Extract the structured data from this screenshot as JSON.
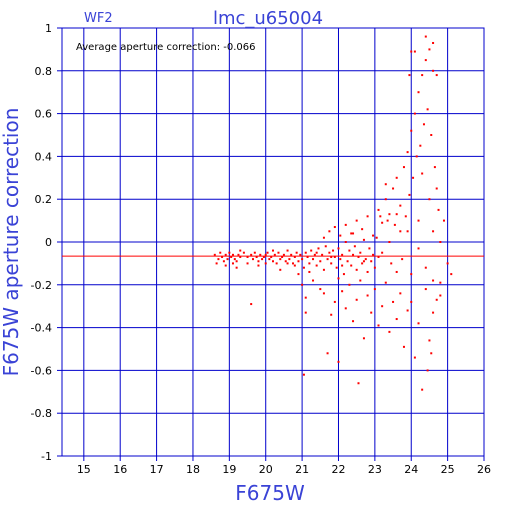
{
  "chart_data": {
    "type": "scatter",
    "title": "lmc_u65004",
    "panel_label": "WF2",
    "annotation": "Average aperture correction: -0.066",
    "xlabel": "F675W",
    "ylabel": "F675W aperture correction",
    "xlim": [
      14.4,
      26
    ],
    "ylim": [
      -1,
      1
    ],
    "xticks": [
      15,
      16,
      17,
      18,
      19,
      20,
      21,
      22,
      23,
      24,
      25,
      26
    ],
    "yticks": [
      -1,
      -0.8,
      -0.6,
      -0.4,
      -0.2,
      0,
      0.2,
      0.4,
      0.6,
      0.8,
      1
    ],
    "ytick_labels": [
      "-1",
      "-0.8",
      "-0.6",
      "-0.4",
      "-0.2",
      "0",
      "0.2",
      "0.4",
      "0.6",
      "0.8",
      "1"
    ],
    "grid": true,
    "reference_line": -0.066,
    "colors": {
      "axes": "#0000cc",
      "points": "#ff0000",
      "reference_line": "#ff0000",
      "text_blue": "#3a43d6"
    },
    "series": [
      {
        "points": [
          [
            18.6,
            -0.06
          ],
          [
            18.7,
            -0.08
          ],
          [
            18.75,
            -0.05
          ],
          [
            18.8,
            -0.07
          ],
          [
            18.85,
            -0.09
          ],
          [
            18.9,
            -0.06
          ],
          [
            18.95,
            -0.08
          ],
          [
            19.0,
            -0.05
          ],
          [
            19.05,
            -0.07
          ],
          [
            19.1,
            -0.06
          ],
          [
            19.15,
            -0.08
          ],
          [
            19.2,
            -0.09
          ],
          [
            19.25,
            -0.06
          ],
          [
            19.3,
            -0.07
          ],
          [
            18.65,
            -0.1
          ],
          [
            18.9,
            -0.11
          ],
          [
            19.1,
            -0.1
          ],
          [
            19.4,
            -0.05
          ],
          [
            19.5,
            -0.07
          ],
          [
            19.6,
            -0.06
          ],
          [
            19.65,
            -0.08
          ],
          [
            19.7,
            -0.05
          ],
          [
            19.75,
            -0.07
          ],
          [
            19.8,
            -0.09
          ],
          [
            19.85,
            -0.06
          ],
          [
            19.9,
            -0.08
          ],
          [
            19.95,
            -0.07
          ],
          [
            20.0,
            -0.06
          ],
          [
            20.05,
            -0.05
          ],
          [
            20.1,
            -0.08
          ],
          [
            20.15,
            -0.07
          ],
          [
            20.2,
            -0.09
          ],
          [
            20.25,
            -0.06
          ],
          [
            20.3,
            -0.1
          ],
          [
            20.35,
            -0.05
          ],
          [
            20.4,
            -0.08
          ],
          [
            20.45,
            -0.07
          ],
          [
            20.5,
            -0.06
          ],
          [
            20.55,
            -0.09
          ],
          [
            20.6,
            -0.04
          ],
          [
            20.65,
            -0.08
          ],
          [
            20.7,
            -0.06
          ],
          [
            20.75,
            -0.1
          ],
          [
            20.8,
            -0.07
          ],
          [
            20.85,
            -0.05
          ],
          [
            20.9,
            -0.09
          ],
          [
            20.95,
            -0.06
          ],
          [
            21.0,
            -0.08
          ],
          [
            21.05,
            -0.12
          ],
          [
            21.1,
            -0.05
          ],
          [
            21.15,
            -0.07
          ],
          [
            21.2,
            -0.1
          ],
          [
            21.25,
            -0.04
          ],
          [
            21.3,
            -0.08
          ],
          [
            21.35,
            -0.06
          ],
          [
            21.4,
            -0.11
          ],
          [
            21.45,
            -0.03
          ],
          [
            21.5,
            -0.09
          ],
          [
            21.55,
            -0.06
          ],
          [
            21.6,
            -0.13
          ],
          [
            21.65,
            -0.02
          ],
          [
            21.7,
            -0.08
          ],
          [
            21.75,
            -0.05
          ],
          [
            21.8,
            -0.1
          ],
          [
            21.85,
            -0.04
          ],
          [
            21.9,
            -0.07
          ],
          [
            21.95,
            -0.12
          ],
          [
            22.0,
            -0.03
          ],
          [
            22.05,
            -0.08
          ],
          [
            22.1,
            -0.06
          ],
          [
            22.15,
            -0.15
          ],
          [
            22.2,
            0.0
          ],
          [
            22.25,
            -0.09
          ],
          [
            22.3,
            -0.04
          ],
          [
            22.35,
            -0.11
          ],
          [
            22.4,
            -0.06
          ],
          [
            22.45,
            -0.02
          ],
          [
            22.5,
            -0.13
          ],
          [
            22.55,
            -0.07
          ],
          [
            22.6,
            -0.05
          ],
          [
            22.65,
            -0.1
          ],
          [
            22.7,
            0.01
          ],
          [
            22.75,
            -0.08
          ],
          [
            22.8,
            -0.14
          ],
          [
            22.85,
            -0.03
          ],
          [
            22.9,
            -0.09
          ],
          [
            22.95,
            -0.06
          ],
          [
            23.0,
            -0.12
          ],
          [
            23.05,
            0.02
          ],
          [
            23.1,
            -0.07
          ],
          [
            19.2,
            -0.12
          ],
          [
            19.6,
            -0.29
          ],
          [
            20.4,
            -0.13
          ],
          [
            20.9,
            -0.15
          ],
          [
            21.0,
            -0.2
          ],
          [
            21.1,
            -0.26
          ],
          [
            21.1,
            -0.33
          ],
          [
            21.3,
            -0.18
          ],
          [
            21.5,
            -0.22
          ],
          [
            21.6,
            -0.24
          ],
          [
            21.7,
            -0.52
          ],
          [
            21.8,
            -0.34
          ],
          [
            21.9,
            -0.28
          ],
          [
            22.0,
            -0.17
          ],
          [
            22.1,
            -0.23
          ],
          [
            22.2,
            -0.31
          ],
          [
            22.3,
            -0.2
          ],
          [
            22.4,
            -0.37
          ],
          [
            22.5,
            -0.27
          ],
          [
            22.55,
            -0.66
          ],
          [
            22.6,
            -0.18
          ],
          [
            22.7,
            -0.45
          ],
          [
            22.8,
            -0.25
          ],
          [
            22.9,
            -0.33
          ],
          [
            23.0,
            -0.22
          ],
          [
            23.1,
            -0.39
          ],
          [
            23.2,
            -0.3
          ],
          [
            23.3,
            -0.19
          ],
          [
            23.4,
            -0.42
          ],
          [
            23.5,
            -0.28
          ],
          [
            23.6,
            -0.36
          ],
          [
            23.7,
            -0.24
          ],
          [
            23.8,
            -0.49
          ],
          [
            23.9,
            -0.32
          ],
          [
            24.0,
            -0.28
          ],
          [
            24.1,
            -0.54
          ],
          [
            24.2,
            -0.38
          ],
          [
            24.3,
            -0.69
          ],
          [
            24.4,
            -0.22
          ],
          [
            24.5,
            -0.46
          ],
          [
            24.6,
            -0.33
          ],
          [
            24.7,
            -0.27
          ],
          [
            24.8,
            -0.19
          ],
          [
            25.1,
            -0.15
          ],
          [
            24.45,
            -0.6
          ],
          [
            24.55,
            -0.52
          ],
          [
            21.05,
            -0.62
          ],
          [
            22.0,
            -0.56
          ],
          [
            21.6,
            0.02
          ],
          [
            21.75,
            0.05
          ],
          [
            21.9,
            0.07
          ],
          [
            22.05,
            0.03
          ],
          [
            22.2,
            0.08
          ],
          [
            22.35,
            0.04
          ],
          [
            22.5,
            0.1
          ],
          [
            22.65,
            0.06
          ],
          [
            22.8,
            0.12
          ],
          [
            22.95,
            0.03
          ],
          [
            23.1,
            0.15
          ],
          [
            23.2,
            0.09
          ],
          [
            23.3,
            0.2
          ],
          [
            23.4,
            0.13
          ],
          [
            23.5,
            0.25
          ],
          [
            23.55,
            0.08
          ],
          [
            23.6,
            0.3
          ],
          [
            23.7,
            0.17
          ],
          [
            23.8,
            0.35
          ],
          [
            23.85,
            0.12
          ],
          [
            23.9,
            0.42
          ],
          [
            23.95,
            0.22
          ],
          [
            24.0,
            0.52
          ],
          [
            24.05,
            0.3
          ],
          [
            24.1,
            0.6
          ],
          [
            24.15,
            0.4
          ],
          [
            24.2,
            0.7
          ],
          [
            24.25,
            0.45
          ],
          [
            24.3,
            0.78
          ],
          [
            24.35,
            0.55
          ],
          [
            24.4,
            0.85
          ],
          [
            24.45,
            0.62
          ],
          [
            24.5,
            0.9
          ],
          [
            24.55,
            0.5
          ],
          [
            24.6,
            0.8
          ],
          [
            24.65,
            0.35
          ],
          [
            24.7,
            0.25
          ],
          [
            24.75,
            0.15
          ],
          [
            23.95,
            0.78
          ],
          [
            24.0,
            0.89
          ],
          [
            24.1,
            0.89
          ],
          [
            24.4,
            0.96
          ],
          [
            24.6,
            0.93
          ],
          [
            24.7,
            0.78
          ],
          [
            24.3,
            0.32
          ],
          [
            24.5,
            0.2
          ],
          [
            24.2,
            0.1
          ],
          [
            24.6,
            0.05
          ],
          [
            24.8,
            0.0
          ],
          [
            23.3,
            0.27
          ],
          [
            23.6,
            0.13
          ],
          [
            23.4,
            0.0
          ],
          [
            23.7,
            0.05
          ],
          [
            23.2,
            -0.05
          ],
          [
            23.45,
            -0.1
          ],
          [
            23.75,
            -0.08
          ],
          [
            24.0,
            -0.15
          ],
          [
            24.2,
            -0.03
          ],
          [
            24.4,
            -0.12
          ],
          [
            24.6,
            -0.18
          ],
          [
            24.8,
            -0.25
          ],
          [
            25.0,
            -0.1
          ],
          [
            24.9,
            0.1
          ],
          [
            23.9,
            0.05
          ],
          [
            23.6,
            -0.14
          ],
          [
            23.35,
            0.1
          ],
          [
            23.15,
            0.12
          ],
          [
            22.7,
            -0.09
          ],
          [
            22.4,
            0.04
          ],
          [
            22.1,
            -0.11
          ],
          [
            21.8,
            -0.07
          ],
          [
            21.4,
            -0.05
          ],
          [
            21.2,
            -0.14
          ],
          [
            20.8,
            -0.11
          ],
          [
            20.6,
            -0.1
          ],
          [
            20.2,
            -0.04
          ],
          [
            20.0,
            -0.1
          ],
          [
            19.8,
            -0.11
          ],
          [
            19.5,
            -0.1
          ],
          [
            19.3,
            -0.04
          ]
        ]
      }
    ]
  }
}
